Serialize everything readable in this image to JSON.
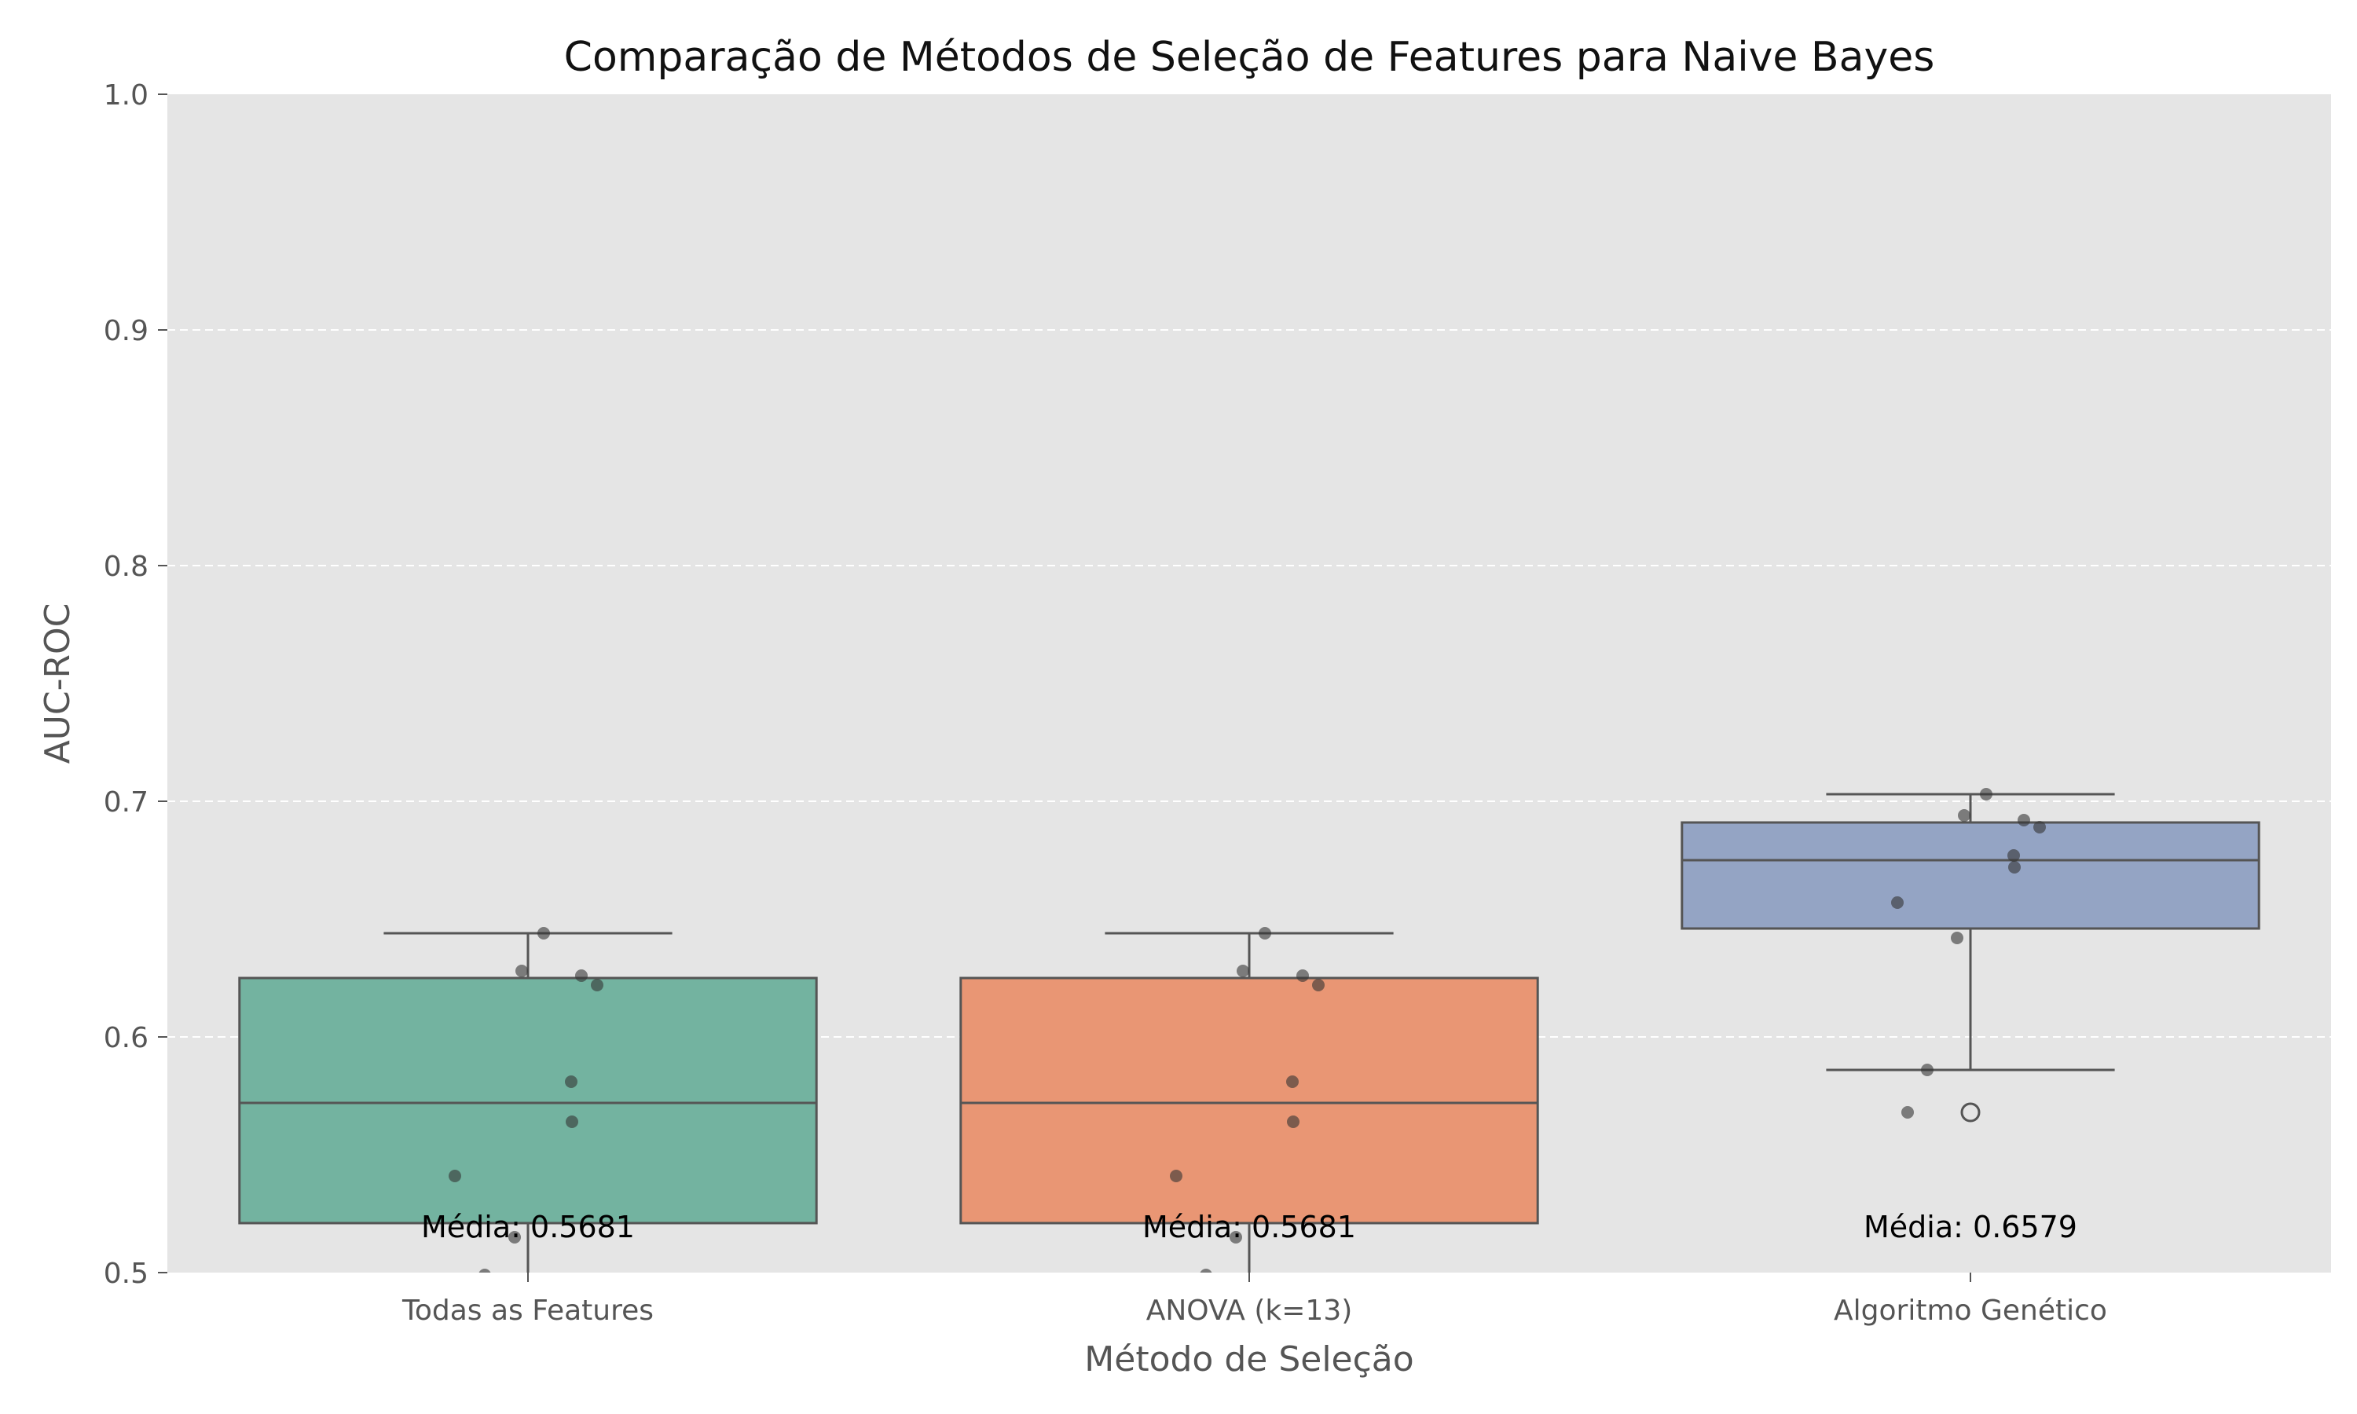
{
  "chart_data": {
    "type": "boxplot",
    "title": "Comparação de Métodos de Seleção de Features para Naive Bayes",
    "xlabel": "Método de Seleção",
    "ylabel": "AUC-ROC",
    "ylim": [
      0.5,
      1.0
    ],
    "yticks": [
      "0.5",
      "0.6",
      "0.7",
      "0.8",
      "0.9",
      "1.0"
    ],
    "grid": "horizontal dashed",
    "categories": [
      "Todas as Features",
      "ANOVA (k=13)",
      "Algoritmo Genético"
    ],
    "boxes": [
      {
        "name": "Todas as Features",
        "color": "#73b3a0",
        "q1": 0.521,
        "median": 0.572,
        "q3": 0.625,
        "whisker_low": 0.485,
        "whisker_high": 0.644,
        "outliers": [],
        "points": [
          0.644,
          0.628,
          0.626,
          0.622,
          0.581,
          0.564,
          0.541,
          0.515,
          0.499
        ],
        "mean_label": "Média: 0.5681"
      },
      {
        "name": "ANOVA (k=13)",
        "color": "#e99674",
        "q1": 0.521,
        "median": 0.572,
        "q3": 0.625,
        "whisker_low": 0.485,
        "whisker_high": 0.644,
        "outliers": [],
        "points": [
          0.644,
          0.628,
          0.626,
          0.622,
          0.581,
          0.564,
          0.541,
          0.515,
          0.499
        ],
        "mean_label": "Média: 0.5681"
      },
      {
        "name": "Algoritmo Genético",
        "color": "#94a4c4",
        "q1": 0.646,
        "median": 0.675,
        "q3": 0.691,
        "whisker_low": 0.586,
        "whisker_high": 0.703,
        "outliers": [
          0.568
        ],
        "points": [
          0.703,
          0.694,
          0.692,
          0.689,
          0.677,
          0.672,
          0.657,
          0.642,
          0.586,
          0.568
        ],
        "mean_label": "Média: 0.6579"
      }
    ]
  }
}
